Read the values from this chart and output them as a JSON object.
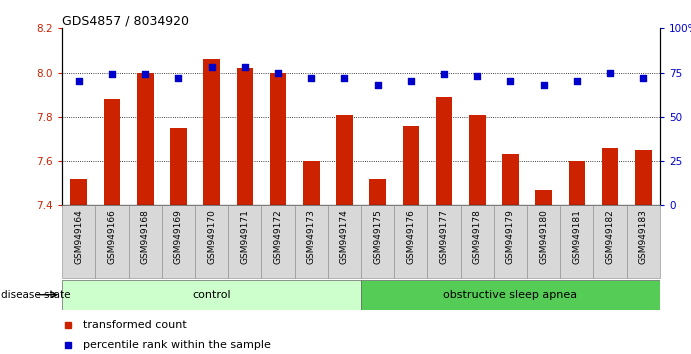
{
  "title": "GDS4857 / 8034920",
  "samples": [
    "GSM949164",
    "GSM949166",
    "GSM949168",
    "GSM949169",
    "GSM949170",
    "GSM949171",
    "GSM949172",
    "GSM949173",
    "GSM949174",
    "GSM949175",
    "GSM949176",
    "GSM949177",
    "GSM949178",
    "GSM949179",
    "GSM949180",
    "GSM949181",
    "GSM949182",
    "GSM949183"
  ],
  "bar_values": [
    7.52,
    7.88,
    8.0,
    7.75,
    8.06,
    8.02,
    8.0,
    7.6,
    7.81,
    7.52,
    7.76,
    7.89,
    7.81,
    7.63,
    7.47,
    7.6,
    7.66,
    7.65
  ],
  "dot_values": [
    70,
    74,
    74,
    72,
    78,
    78,
    75,
    72,
    72,
    68,
    70,
    74,
    73,
    70,
    68,
    70,
    75,
    72
  ],
  "ylim_left": [
    7.4,
    8.2
  ],
  "ylim_right": [
    0,
    100
  ],
  "yticks_left": [
    7.4,
    7.6,
    7.8,
    8.0,
    8.2
  ],
  "yticks_right": [
    0,
    25,
    50,
    75,
    100
  ],
  "ytick_labels_right": [
    "0",
    "25",
    "50",
    "75",
    "100%"
  ],
  "bar_color": "#cc2200",
  "dot_color": "#0000cc",
  "control_color": "#ccffcc",
  "apnea_color": "#55cc55",
  "control_label": "control",
  "apnea_label": "obstructive sleep apnea",
  "disease_state_label": "disease state",
  "legend_bar_label": "transformed count",
  "legend_dot_label": "percentile rank within the sample",
  "n_control": 9,
  "n_apnea": 9
}
